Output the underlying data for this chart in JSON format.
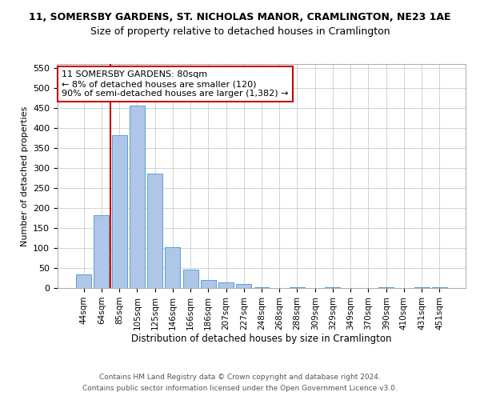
{
  "title_line1": "11, SOMERSBY GARDENS, ST. NICHOLAS MANOR, CRAMLINGTON, NE23 1AE",
  "title_line2": "Size of property relative to detached houses in Cramlington",
  "xlabel": "Distribution of detached houses by size in Cramlington",
  "ylabel": "Number of detached properties",
  "bar_labels": [
    "44sqm",
    "64sqm",
    "85sqm",
    "105sqm",
    "125sqm",
    "146sqm",
    "166sqm",
    "186sqm",
    "207sqm",
    "227sqm",
    "248sqm",
    "268sqm",
    "288sqm",
    "309sqm",
    "329sqm",
    "349sqm",
    "370sqm",
    "390sqm",
    "410sqm",
    "431sqm",
    "451sqm"
  ],
  "bar_values": [
    35,
    183,
    383,
    457,
    287,
    103,
    47,
    20,
    15,
    10,
    3,
    0,
    3,
    0,
    3,
    0,
    0,
    3,
    0,
    3,
    3
  ],
  "bar_color": "#aec6e8",
  "bar_edge_color": "#5a9fd4",
  "vline_x_idx": 1,
  "vline_color": "#cc0000",
  "annotation_text": "11 SOMERSBY GARDENS: 80sqm\n← 8% of detached houses are smaller (120)\n90% of semi-detached houses are larger (1,382) →",
  "annotation_box_color": "#ffffff",
  "annotation_box_edge_color": "#cc0000",
  "ylim": [
    0,
    560
  ],
  "yticks": [
    0,
    50,
    100,
    150,
    200,
    250,
    300,
    350,
    400,
    450,
    500,
    550
  ],
  "footnote1": "Contains HM Land Registry data © Crown copyright and database right 2024.",
  "footnote2": "Contains public sector information licensed under the Open Government Licence v3.0.",
  "title_fontsize": 9,
  "subtitle_fontsize": 9,
  "bar_width": 0.85,
  "fig_width": 6.0,
  "fig_height": 5.0,
  "fig_dpi": 100
}
